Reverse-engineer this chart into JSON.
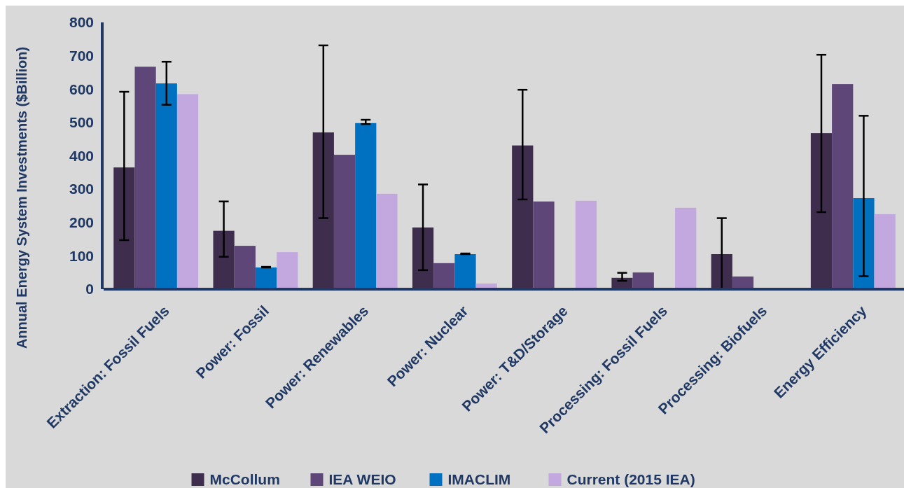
{
  "chart_data": {
    "type": "bar",
    "ylabel": "Annual Energy System Investments ($Billion)",
    "categories": [
      "Extraction: Fossil Fuels",
      "Power: Fossil",
      "Power: Renewables",
      "Power: Nuclear",
      "Power: T&D/Storage",
      "Processing: Fossil Fuels",
      "Processing: Biofuels",
      "Energy Efficiency"
    ],
    "series": [
      {
        "name": "McCollum",
        "color": "#3e2d4c",
        "values": [
          365,
          175,
          470,
          185,
          431,
          34,
          105,
          468
        ],
        "errors": [
          [
            147,
            592
          ],
          [
            97,
            263
          ],
          [
            213,
            731
          ],
          [
            57,
            314
          ],
          [
            269,
            598
          ],
          [
            25,
            49
          ],
          [
            0,
            213
          ],
          [
            231,
            703
          ]
        ]
      },
      {
        "name": "IEA WEIO",
        "color": "#5f4679",
        "values": [
          667,
          130,
          403,
          78,
          263,
          50,
          38,
          615
        ]
      },
      {
        "name": "IMACLIM",
        "color": "#0070c0",
        "values": [
          617,
          65,
          498,
          105,
          null,
          null,
          null,
          273
        ],
        "errors": [
          [
            553,
            682
          ],
          [
            65,
            67
          ],
          [
            495,
            508
          ],
          [
            105,
            107
          ],
          null,
          null,
          null,
          [
            39,
            520
          ]
        ]
      },
      {
        "name": "Current (2015 IEA)",
        "color": "#c3a8e0",
        "values": [
          585,
          111,
          286,
          17,
          265,
          244,
          null,
          225
        ]
      }
    ],
    "ylim": [
      0,
      800
    ],
    "yticks": [
      0,
      100,
      200,
      300,
      400,
      500,
      600,
      700,
      800
    ],
    "grid": false,
    "legend": "bottom"
  }
}
